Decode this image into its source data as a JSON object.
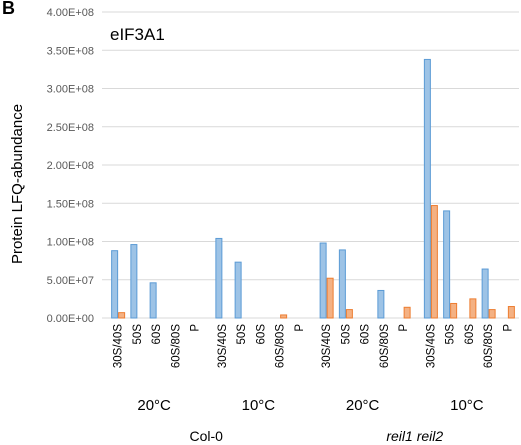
{
  "chart_data": {
    "type": "bar",
    "panel_letter": "B",
    "title": "eIF3A1",
    "ylabel": "Protein LFQ-abundance",
    "ylim": [
      0,
      400000000
    ],
    "yticks": [
      0,
      50000000,
      100000000,
      150000000,
      200000000,
      250000000,
      300000000,
      350000000,
      400000000
    ],
    "ytick_labels": [
      "0.00E+00",
      "5.00E+07",
      "1.00E+08",
      "1.50E+08",
      "2.00E+08",
      "2.50E+08",
      "3.00E+08",
      "3.50E+08",
      "4.00E+08"
    ],
    "grid": true,
    "groups": [
      {
        "genotype": "Col-0",
        "genotype_italic": false,
        "temperature": "20°C",
        "categories": [
          "30S/40S",
          "50S",
          "60S",
          "60S/80S",
          "P"
        ],
        "values_blue": [
          88000000,
          96000000,
          46000000,
          0,
          0
        ],
        "values_orange": [
          7000000,
          0,
          0,
          0,
          0
        ]
      },
      {
        "genotype": "Col-0",
        "genotype_italic": false,
        "temperature": "10°C",
        "categories": [
          "30S/40S",
          "50S",
          "60S",
          "60S/80S",
          "P"
        ],
        "values_blue": [
          104000000,
          73000000,
          0,
          0,
          0
        ],
        "values_orange": [
          0,
          0,
          0,
          4000000,
          0
        ]
      },
      {
        "genotype": "reil1 reil2",
        "genotype_italic": true,
        "temperature": "20°C",
        "categories": [
          "30S/40S",
          "50S",
          "60S",
          "60S/80S",
          "P"
        ],
        "values_blue": [
          98000000,
          89000000,
          0,
          36000000,
          0
        ],
        "values_orange": [
          52000000,
          11000000,
          0,
          0,
          14000000
        ]
      },
      {
        "genotype": "reil1 reil2",
        "genotype_italic": true,
        "temperature": "10°C",
        "categories": [
          "30S/40S",
          "50S",
          "60S",
          "60S/80S",
          "P"
        ],
        "values_blue": [
          338000000,
          140000000,
          0,
          64000000,
          0
        ],
        "values_orange": [
          147000000,
          19000000,
          25000000,
          11000000,
          15000000
        ]
      }
    ],
    "colors": {
      "blue_fill": "#9DC3E6",
      "blue_edge": "#5B9BD5",
      "orange_fill": "#F4B183",
      "orange_edge": "#ED7D31",
      "grid": "#D9D9D9"
    }
  }
}
